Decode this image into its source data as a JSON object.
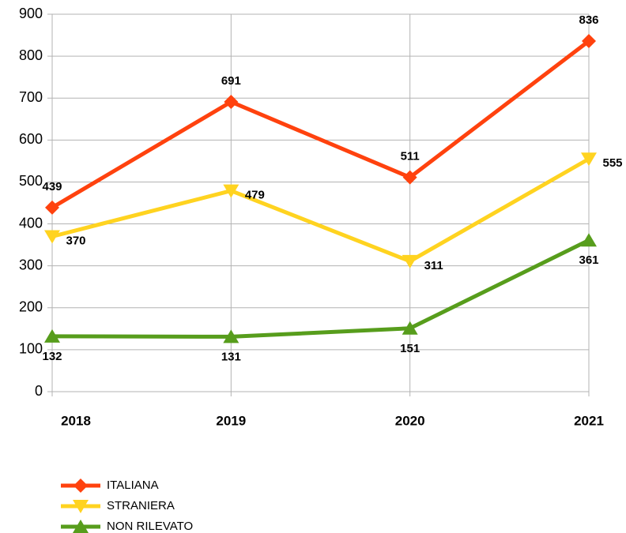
{
  "chart_data": {
    "type": "line",
    "categories": [
      "2018",
      "2019",
      "2020",
      "2021"
    ],
    "series": [
      {
        "name": "ITALIANA",
        "color": "#ff420e",
        "marker": "diamond",
        "values": [
          439,
          691,
          511,
          836
        ]
      },
      {
        "name": "STRANIERA",
        "color": "#ffd320",
        "marker": "triangle-down",
        "values": [
          370,
          479,
          311,
          555
        ]
      },
      {
        "name": "NON RILEVATO",
        "color": "#579d1c",
        "marker": "triangle-up",
        "values": [
          132,
          131,
          151,
          361
        ]
      }
    ],
    "ylim": [
      0,
      900
    ],
    "yticks": [
      0,
      100,
      200,
      300,
      400,
      500,
      600,
      700,
      800,
      900
    ],
    "grid": true,
    "legend": "bottom-left"
  }
}
